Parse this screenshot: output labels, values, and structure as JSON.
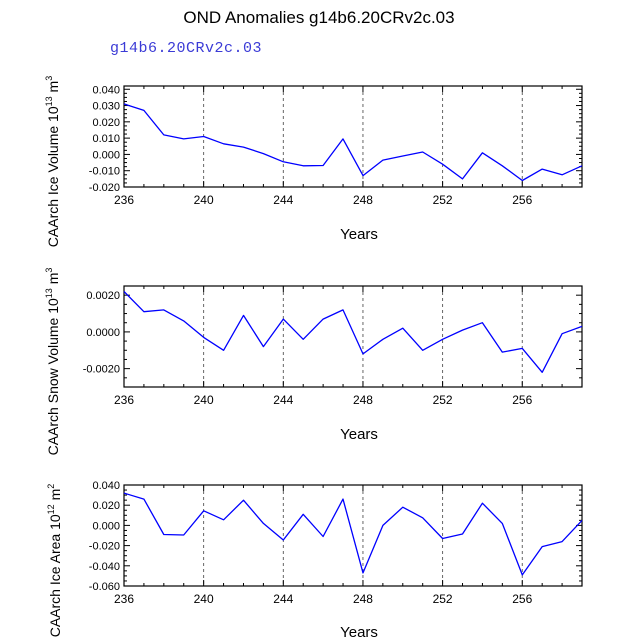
{
  "page": {
    "title": "OND Anomalies g14b6.20CRv2c.03",
    "subtitle": "g14b6.20CRv2c.03"
  },
  "chart_data": [
    {
      "type": "line",
      "xlabel": "Years",
      "ylabel_main": "CAArch Ice Volume 10",
      "ylabel_exp": "13",
      "ylabel_unit": "m",
      "ylabel_unit_exp": "3",
      "xlim": [
        236,
        259
      ],
      "ylim": [
        -0.02,
        0.042
      ],
      "xticks": [
        236,
        240,
        244,
        248,
        252,
        256
      ],
      "yticks": [
        0.04,
        0.03,
        0.02,
        0.01,
        0.0,
        -0.01,
        -0.02
      ],
      "ytick_labels": [
        "0.040",
        "0.030",
        "0.020",
        "0.010",
        "0.000",
        "-0.010",
        "-0.020"
      ],
      "series": [
        {
          "name": "g14b6.20CRv2c.03",
          "color": "#0000ff",
          "x": [
            236,
            237,
            238,
            239,
            240,
            241,
            242,
            243,
            244,
            245,
            246,
            247,
            248,
            249,
            250,
            251,
            252,
            253,
            254,
            255,
            256,
            257,
            258,
            259
          ],
          "values": [
            0.031,
            0.027,
            0.012,
            0.0095,
            0.011,
            0.0065,
            0.0045,
            0.0005,
            -0.0045,
            -0.007,
            -0.0068,
            0.0095,
            -0.013,
            -0.0035,
            -0.001,
            0.0015,
            -0.006,
            -0.015,
            0.001,
            -0.007,
            -0.016,
            -0.009,
            -0.0125,
            -0.007
          ]
        }
      ]
    },
    {
      "type": "line",
      "xlabel": "Years",
      "ylabel_main": "CAArch Snow Volume 10",
      "ylabel_exp": "13",
      "ylabel_unit": "m",
      "ylabel_unit_exp": "3",
      "xlim": [
        236,
        259
      ],
      "ylim": [
        -0.003,
        0.0025
      ],
      "xticks": [
        236,
        240,
        244,
        248,
        252,
        256
      ],
      "yticks": [
        0.002,
        0.0,
        -0.002
      ],
      "ytick_labels": [
        "0.0020",
        "0.0000",
        "-0.0020"
      ],
      "series": [
        {
          "name": "g14b6.20CRv2c.03",
          "color": "#0000ff",
          "x": [
            236,
            237,
            238,
            239,
            240,
            241,
            242,
            243,
            244,
            245,
            246,
            247,
            248,
            249,
            250,
            251,
            252,
            253,
            254,
            255,
            256,
            257,
            258,
            259
          ],
          "values": [
            0.0022,
            0.0011,
            0.0012,
            0.0006,
            -0.0003,
            -0.001,
            0.0009,
            -0.0008,
            0.0007,
            -0.0004,
            0.0007,
            0.0012,
            -0.0012,
            -0.0004,
            0.0002,
            -0.001,
            -0.0004,
            0.0001,
            0.0005,
            -0.0011,
            -0.0009,
            -0.0022,
            -0.0001,
            0.0003
          ]
        }
      ]
    },
    {
      "type": "line",
      "xlabel": "Years",
      "ylabel_main": "CAArch Ice Area 10",
      "ylabel_exp": "12",
      "ylabel_unit": "m",
      "ylabel_unit_exp": "2",
      "xlim": [
        236,
        259
      ],
      "ylim": [
        -0.06,
        0.04
      ],
      "xticks": [
        236,
        240,
        244,
        248,
        252,
        256
      ],
      "yticks": [
        0.04,
        0.02,
        0.0,
        -0.02,
        -0.04,
        -0.06
      ],
      "ytick_labels": [
        "0.040",
        "0.020",
        "0.000",
        "-0.020",
        "-0.040",
        "-0.060"
      ],
      "series": [
        {
          "name": "g14b6.20CRv2c.03",
          "color": "#0000ff",
          "x": [
            236,
            237,
            238,
            239,
            240,
            241,
            242,
            243,
            244,
            245,
            246,
            247,
            248,
            249,
            250,
            251,
            252,
            253,
            254,
            255,
            256,
            257,
            258,
            259
          ],
          "values": [
            0.032,
            0.026,
            -0.009,
            -0.0095,
            0.0145,
            0.0055,
            0.025,
            0.002,
            -0.0145,
            0.011,
            -0.011,
            0.026,
            -0.047,
            0.0,
            0.018,
            0.0075,
            -0.013,
            -0.0085,
            0.022,
            0.002,
            -0.049,
            -0.021,
            -0.016,
            0.005
          ]
        }
      ]
    }
  ]
}
